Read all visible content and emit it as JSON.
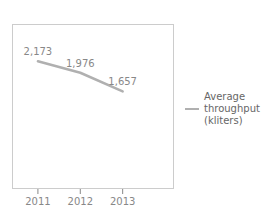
{
  "chart_data": {
    "type": "line",
    "x": [
      2011,
      2012,
      2013
    ],
    "series": [
      {
        "name": "Average\nthroughput\n(kliters)",
        "color": "#b0b0b0",
        "values": [
          2173,
          1976,
          1657
        ],
        "value_labels": [
          "2,173",
          "1,976",
          "1,657"
        ]
      }
    ],
    "xlim": [
      2010.4,
      2014.2
    ],
    "xticks": [
      2011,
      2012,
      2013
    ],
    "ylim": [
      0,
      2800
    ],
    "data_labels": true,
    "tick_labels": "x",
    "legend": "right"
  }
}
